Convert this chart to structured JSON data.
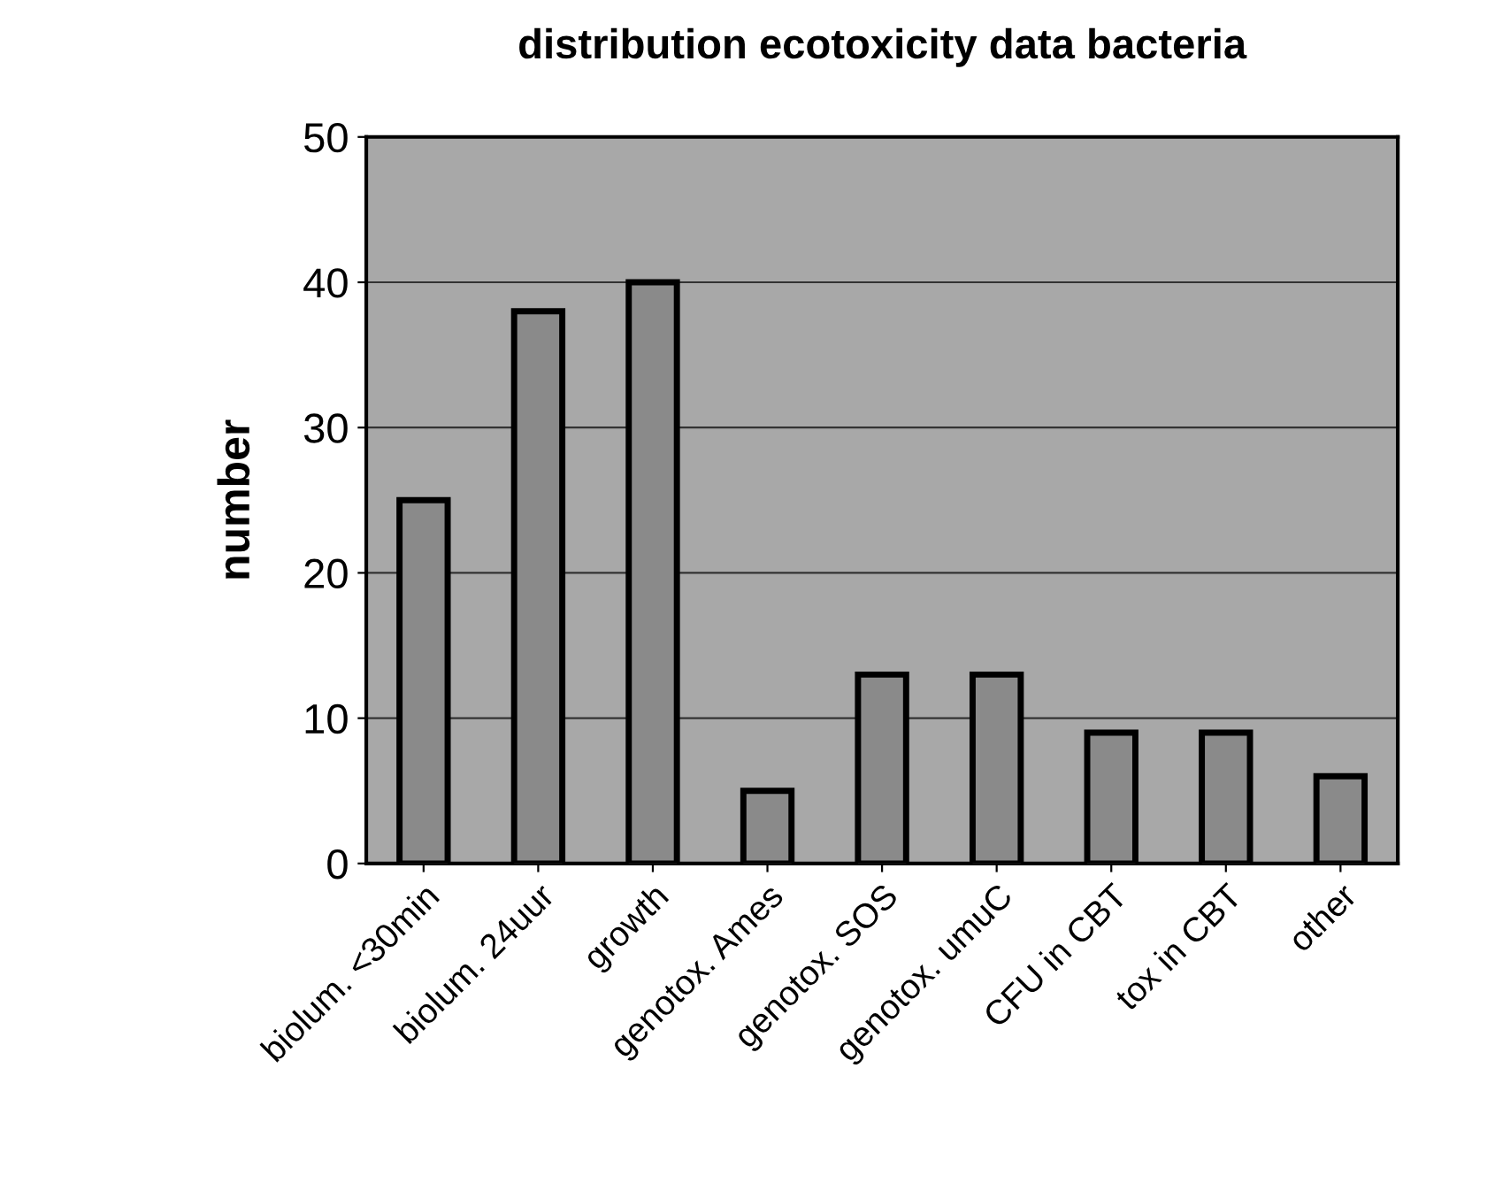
{
  "chart_data": {
    "type": "bar",
    "title": "distribution ecotoxicity data bacteria",
    "ylabel": "number",
    "categories": [
      "biolum. <30min",
      "biolum. 24uur",
      "growth",
      "genotox. Ames",
      "genotox. SOS",
      "genotox. umuC",
      "CFU in CBT",
      "tox in CBT",
      "other"
    ],
    "values": [
      25,
      38,
      40,
      5,
      13,
      13,
      9,
      9,
      6
    ],
    "color": "#8a8a8a",
    "ylim": [
      0,
      50
    ],
    "yticks": [
      0,
      10,
      20,
      30,
      40,
      50
    ],
    "grid": "y"
  }
}
